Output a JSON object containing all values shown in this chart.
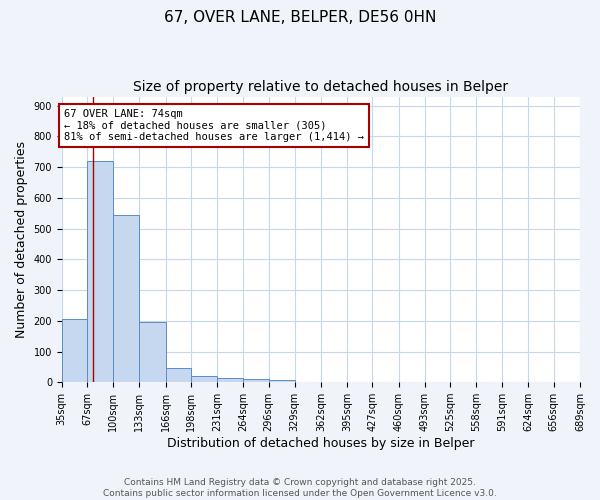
{
  "title_line1": "67, OVER LANE, BELPER, DE56 0HN",
  "title_line2": "Size of property relative to detached houses in Belper",
  "xlabel": "Distribution of detached houses by size in Belper",
  "ylabel": "Number of detached properties",
  "bin_edges": [
    35,
    67,
    100,
    133,
    166,
    198,
    231,
    264,
    296,
    329,
    362,
    395,
    427,
    460,
    493,
    525,
    558,
    591,
    624,
    656,
    689
  ],
  "bin_counts": [
    205,
    720,
    545,
    195,
    47,
    20,
    14,
    10,
    8,
    0,
    0,
    0,
    0,
    0,
    0,
    0,
    0,
    0,
    0,
    0
  ],
  "bar_color": "#c5d8ef",
  "bar_edge_color": "#5b8dc8",
  "vline_x": 74,
  "vline_color": "#aa0000",
  "annotation_text": "67 OVER LANE: 74sqm\n← 18% of detached houses are smaller (305)\n81% of semi-detached houses are larger (1,414) →",
  "annotation_box_facecolor": "#ffffff",
  "annotation_box_edgecolor": "#aa0000",
  "ylim": [
    0,
    930
  ],
  "yticks": [
    0,
    100,
    200,
    300,
    400,
    500,
    600,
    700,
    800,
    900
  ],
  "plot_bg_color": "#ffffff",
  "fig_bg_color": "#f0f4fa",
  "grid_color": "#c8d8ec",
  "footer_line1": "Contains HM Land Registry data © Crown copyright and database right 2025.",
  "footer_line2": "Contains public sector information licensed under the Open Government Licence v3.0.",
  "title_fontsize": 11,
  "subtitle_fontsize": 10,
  "axis_label_fontsize": 9,
  "tick_fontsize": 7,
  "annotation_fontsize": 7.5,
  "footer_fontsize": 6.5
}
